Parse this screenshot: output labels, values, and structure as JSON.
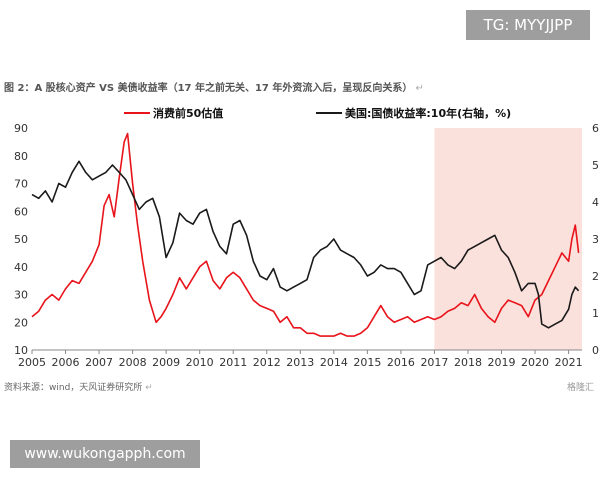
{
  "watermark_top": "TG: MYYJJPP",
  "watermark_bottom": "www.wukongapph.com",
  "figure_title": "图 2：A 股核心资产 VS 美债收益率（17 年之前无关、17 年外资流入后，呈现反向关系）",
  "source_text": "资料来源：wind，天风证券研究所",
  "logo_text": "格隆汇",
  "chart_data": {
    "type": "line",
    "title": "图 2：A 股核心资产 VS 美债收益率（17 年之前无关、17 年外资流入后，呈现反向关系）",
    "xlabel": "",
    "ylabel": "",
    "x_ticks": [
      "2005",
      "2006",
      "2007",
      "2008",
      "2009",
      "2010",
      "2011",
      "2012",
      "2013",
      "2014",
      "2015",
      "2016",
      "2017",
      "2018",
      "2019",
      "2020",
      "2021"
    ],
    "xlim": [
      2005,
      2021.4
    ],
    "ylim_left": [
      10,
      90
    ],
    "yticks_left": [
      10,
      20,
      30,
      40,
      50,
      60,
      70,
      80,
      90
    ],
    "ylim_right": [
      0,
      6
    ],
    "yticks_right": [
      0,
      1,
      2,
      3,
      4,
      5,
      6
    ],
    "highlight_region": {
      "from": 2017.0,
      "to": 2021.4,
      "color": "#fbe1dc"
    },
    "grid": false,
    "legend_position": "top",
    "colors": {
      "series_1": "#e8141b",
      "series_2": "#1a1a1a",
      "highlight": "#fbe1dc"
    },
    "series": [
      {
        "name": "消费前50估值",
        "axis": "left",
        "x": [
          2005.0,
          2005.2,
          2005.4,
          2005.6,
          2005.8,
          2006.0,
          2006.2,
          2006.4,
          2006.6,
          2006.8,
          2007.0,
          2007.15,
          2007.3,
          2007.45,
          2007.6,
          2007.75,
          2007.85,
          2008.0,
          2008.15,
          2008.3,
          2008.5,
          2008.7,
          2008.85,
          2009.0,
          2009.2,
          2009.4,
          2009.6,
          2009.8,
          2010.0,
          2010.2,
          2010.4,
          2010.6,
          2010.8,
          2011.0,
          2011.2,
          2011.4,
          2011.6,
          2011.8,
          2012.0,
          2012.2,
          2012.4,
          2012.6,
          2012.8,
          2013.0,
          2013.2,
          2013.4,
          2013.6,
          2013.8,
          2014.0,
          2014.2,
          2014.4,
          2014.6,
          2014.8,
          2015.0,
          2015.2,
          2015.4,
          2015.6,
          2015.8,
          2016.0,
          2016.2,
          2016.4,
          2016.6,
          2016.8,
          2017.0,
          2017.2,
          2017.4,
          2017.6,
          2017.8,
          2018.0,
          2018.2,
          2018.4,
          2018.6,
          2018.8,
          2019.0,
          2019.2,
          2019.4,
          2019.6,
          2019.8,
          2020.0,
          2020.2,
          2020.4,
          2020.6,
          2020.8,
          2021.0,
          2021.1,
          2021.2,
          2021.3
        ],
        "values": [
          22,
          24,
          28,
          30,
          28,
          32,
          35,
          34,
          38,
          42,
          48,
          62,
          66,
          58,
          72,
          85,
          88,
          70,
          55,
          42,
          28,
          20,
          22,
          25,
          30,
          36,
          32,
          36,
          40,
          42,
          35,
          32,
          36,
          38,
          36,
          32,
          28,
          26,
          25,
          24,
          20,
          22,
          18,
          18,
          16,
          16,
          15,
          15,
          15,
          16,
          15,
          15,
          16,
          18,
          22,
          26,
          22,
          20,
          21,
          22,
          20,
          21,
          22,
          21,
          22,
          24,
          25,
          27,
          26,
          30,
          25,
          22,
          20,
          25,
          28,
          27,
          26,
          22,
          28,
          30,
          35,
          40,
          45,
          42,
          50,
          55,
          45
        ]
      },
      {
        "name": "美国:国债收益率:10年(右轴，%)",
        "axis": "right",
        "x": [
          2005.0,
          2005.2,
          2005.4,
          2005.6,
          2005.8,
          2006.0,
          2006.2,
          2006.4,
          2006.6,
          2006.8,
          2007.0,
          2007.2,
          2007.4,
          2007.6,
          2007.8,
          2008.0,
          2008.2,
          2008.4,
          2008.6,
          2008.8,
          2009.0,
          2009.2,
          2009.4,
          2009.6,
          2009.8,
          2010.0,
          2010.2,
          2010.4,
          2010.6,
          2010.8,
          2011.0,
          2011.2,
          2011.4,
          2011.6,
          2011.8,
          2012.0,
          2012.2,
          2012.4,
          2012.6,
          2012.8,
          2013.0,
          2013.2,
          2013.4,
          2013.6,
          2013.8,
          2014.0,
          2014.2,
          2014.4,
          2014.6,
          2014.8,
          2015.0,
          2015.2,
          2015.4,
          2015.6,
          2015.8,
          2016.0,
          2016.2,
          2016.4,
          2016.6,
          2016.8,
          2017.0,
          2017.2,
          2017.4,
          2017.6,
          2017.8,
          2018.0,
          2018.2,
          2018.4,
          2018.6,
          2018.8,
          2019.0,
          2019.2,
          2019.4,
          2019.6,
          2019.8,
          2020.0,
          2020.1,
          2020.2,
          2020.4,
          2020.6,
          2020.8,
          2021.0,
          2021.1,
          2021.2,
          2021.3
        ],
        "values": [
          4.2,
          4.1,
          4.3,
          4.0,
          4.5,
          4.4,
          4.8,
          5.1,
          4.8,
          4.6,
          4.7,
          4.8,
          5.0,
          4.8,
          4.6,
          4.2,
          3.8,
          4.0,
          4.1,
          3.6,
          2.5,
          2.9,
          3.7,
          3.5,
          3.4,
          3.7,
          3.8,
          3.2,
          2.8,
          2.6,
          3.4,
          3.5,
          3.1,
          2.4,
          2.0,
          1.9,
          2.2,
          1.7,
          1.6,
          1.7,
          1.8,
          1.9,
          2.5,
          2.7,
          2.8,
          3.0,
          2.7,
          2.6,
          2.5,
          2.3,
          2.0,
          2.1,
          2.3,
          2.2,
          2.2,
          2.1,
          1.8,
          1.5,
          1.6,
          2.3,
          2.4,
          2.5,
          2.3,
          2.2,
          2.4,
          2.7,
          2.8,
          2.9,
          3.0,
          3.1,
          2.7,
          2.5,
          2.1,
          1.6,
          1.8,
          1.8,
          1.5,
          0.7,
          0.6,
          0.7,
          0.8,
          1.1,
          1.5,
          1.7,
          1.6
        ]
      }
    ]
  }
}
